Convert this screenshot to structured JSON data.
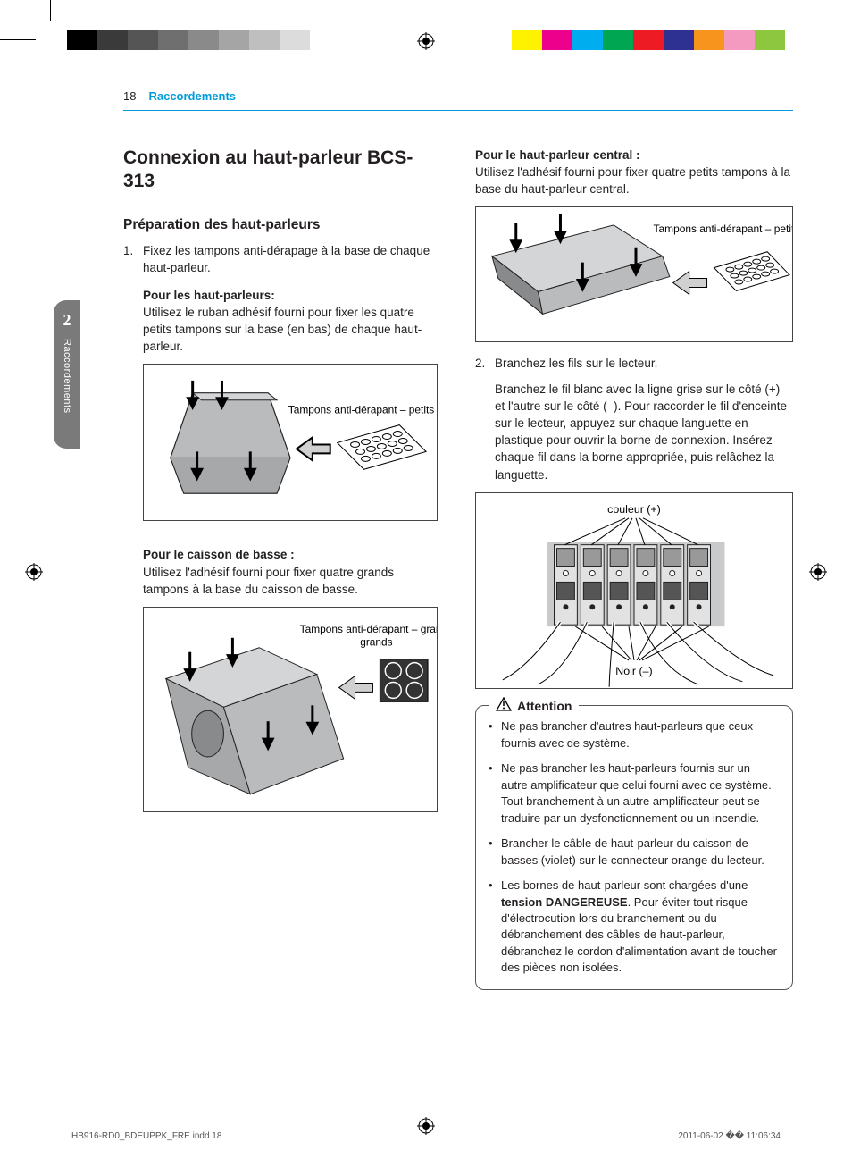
{
  "registration": {
    "gray_swatches": [
      "#000000",
      "#3a3a3a",
      "#555555",
      "#6f6f6f",
      "#8a8a8a",
      "#a5a5a5",
      "#bfbfbf",
      "#dcdcdc"
    ],
    "color_swatches": [
      "#fff200",
      "#ec008c",
      "#00aeef",
      "#00a651",
      "#ed1c24",
      "#2e3192",
      "#f7941d",
      "#f49ac1",
      "#8dc63f"
    ]
  },
  "header": {
    "page_number": "18",
    "section": "Raccordements"
  },
  "side_tab": {
    "number": "2",
    "label": "Raccordements"
  },
  "title": "Connexion au haut-parleur BCS-313",
  "prep_heading": "Préparation des haut-parleurs",
  "step1": {
    "num": "1.",
    "text": "Fixez les tampons anti-dérapage à la base de chaque haut-parleur."
  },
  "speakers": {
    "heading": "Pour les haut-parleurs:",
    "text": "Utilisez le ruban adhésif fourni pour fixer les quatre petits tampons sur la base (en bas) de chaque haut-parleur.",
    "fig_label": "Tampons anti-dérapant – petits"
  },
  "subwoofer": {
    "heading": "Pour le caisson de basse :",
    "text": "Utilisez l'adhésif fourni pour fixer quatre grands tampons à la base du caisson de basse.",
    "fig_label": "Tampons anti-dérapant – grands"
  },
  "center": {
    "heading": "Pour le haut-parleur central :",
    "text": "Utilisez l'adhésif fourni pour fixer quatre petits tampons à la base du haut-parleur central.",
    "fig_label": "Tampons anti-dérapant – petits"
  },
  "step2": {
    "num": "2.",
    "text": "Branchez les fils sur le lecteur."
  },
  "step2_para": "Branchez le fil blanc avec la ligne grise sur le côté (+) et l'autre sur le côté (–). Pour raccorder le fil d'enceinte sur le lecteur, appuyez sur chaque languette en plastique pour ouvrir la borne de connexion. Insérez chaque fil dans la borne appropriée, puis relâchez la languette.",
  "terminal_fig": {
    "top_label": "couleur (+)",
    "bottom_label": "Noir (–)"
  },
  "attention": {
    "title": "Attention",
    "items": [
      "Ne pas brancher d'autres haut-parleurs que ceux fournis avec de système.",
      "Ne pas brancher les haut-parleurs fournis sur un autre amplificateur que celui fourni avec ce système. Tout branchement à un autre amplificateur peut se traduire par un dysfonctionnement ou un incendie.",
      "Brancher le câble de haut-parleur du caisson de basses (violet) sur le connecteur orange du lecteur."
    ],
    "item4_pre": "Les bornes de haut-parleur sont chargées d'une ",
    "item4_strong": "tension DANGEREUSE",
    "item4_post": ". Pour éviter tout risque d'électrocution lors du branchement ou du débranchement des câbles de haut-parleur, débranchez le cordon d'alimentation avant de toucher des pièces non isolées."
  },
  "footer": {
    "left": "HB916-RD0_BDEUPPK_FRE.indd   18",
    "right": "2011-06-02   �� 11:06:34"
  },
  "colors": {
    "accent": "#009bd9",
    "figure_fill": "#b9bbbd",
    "figure_dark": "#888a8c",
    "figure_stroke": "#222222"
  }
}
